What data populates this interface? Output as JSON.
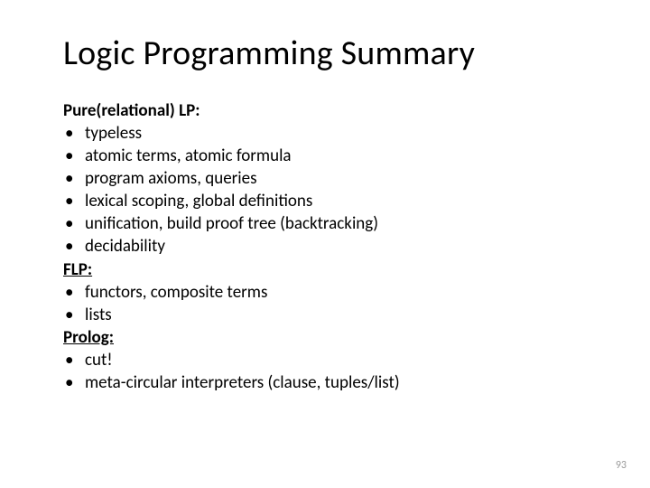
{
  "title": "Logic Programming Summary",
  "sections": [
    {
      "head": "Pure(relational) LP:",
      "underline": false,
      "bullets": [
        "typeless",
        "atomic terms, atomic formula",
        "program axioms, queries",
        "lexical scoping, global definitions",
        "unification, build proof tree (backtracking)",
        "decidability"
      ]
    },
    {
      "head": "FLP:",
      "underline": true,
      "bullets": [
        "functors, composite terms",
        "lists"
      ]
    },
    {
      "head": "Prolog:",
      "underline": true,
      "bullets": [
        "cut!",
        "meta-circular interpreters (clause, tuples/list)"
      ]
    }
  ],
  "bullet_char": "•",
  "page_number": "93"
}
